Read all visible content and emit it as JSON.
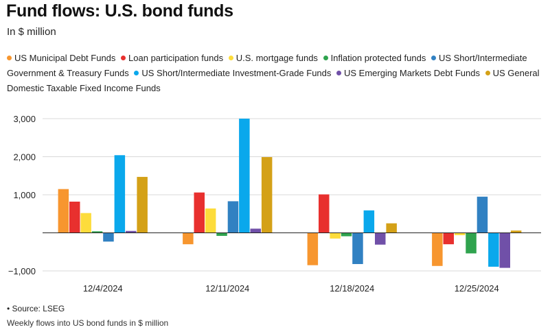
{
  "title": "Fund flows: U.S. bond funds",
  "subtitle": "In $ million",
  "source": "• Source: LSEG",
  "caption": "Weekly flows into US bond funds in $ million",
  "chart_data": {
    "type": "bar",
    "categories": [
      "12/4/2024",
      "12/11/2024",
      "12/18/2024",
      "12/25/2024"
    ],
    "ylim": [
      -1000,
      3000
    ],
    "yticks": [
      3000,
      2000,
      1000,
      -1000
    ],
    "ytick_labels": [
      "3,000",
      "2,000",
      "1,000",
      "−1,000"
    ],
    "grid": true,
    "legend_position": "top",
    "series": [
      {
        "name": "US Municipal Debt Funds",
        "color": "#f7962f",
        "values": [
          1150,
          -300,
          -850,
          -870
        ]
      },
      {
        "name": "Loan participation funds",
        "color": "#e8302e",
        "values": [
          820,
          1060,
          1010,
          -300
        ]
      },
      {
        "name": "U.S. mortgage funds",
        "color": "#fddc3b",
        "values": [
          520,
          640,
          -150,
          -60
        ]
      },
      {
        "name": "Inflation protected funds",
        "color": "#2fa34e",
        "values": [
          40,
          -80,
          -90,
          -540
        ]
      },
      {
        "name": "US Short/Intermediate Government & Treasury Funds",
        "color": "#3181c2",
        "values": [
          -230,
          830,
          -820,
          950
        ]
      },
      {
        "name": "US Short/Intermediate Investment-Grade Funds",
        "color": "#0aa8ec",
        "values": [
          2040,
          3000,
          590,
          -890
        ]
      },
      {
        "name": "US Emerging Markets Debt Funds",
        "color": "#7050a8",
        "values": [
          50,
          110,
          -310,
          -920
        ]
      },
      {
        "name": "US General Domestic Taxable Fixed Income Funds",
        "color": "#d4a117",
        "values": [
          1470,
          1990,
          250,
          60
        ]
      }
    ]
  }
}
